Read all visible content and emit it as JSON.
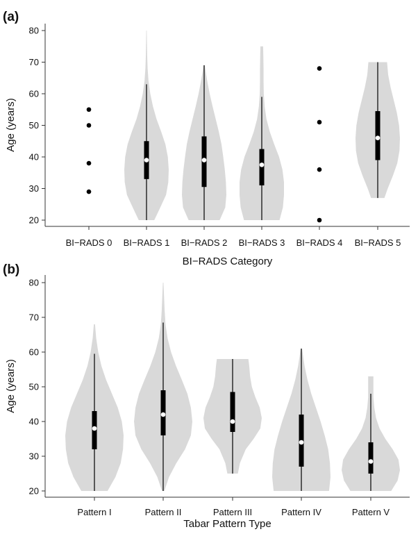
{
  "chart_data": [
    {
      "type": "violin",
      "panel_label": "(a)",
      "xlabel": "BI−RADS Category",
      "ylabel": "Age (years)",
      "ylim": [
        18,
        82
      ],
      "yticks": [
        20,
        30,
        40,
        50,
        60,
        70,
        80
      ],
      "colors": {
        "violin": "#d9d9d9",
        "box": "#000000",
        "median": "#ffffff",
        "point": "#000000"
      },
      "categories": [
        "BI−RADS 0",
        "BI−RADS 1",
        "BI−RADS 2",
        "BI−RADS 3",
        "BI−RADS 4",
        "BI−RADS 5"
      ],
      "groups": [
        {
          "name": "BI−RADS 0",
          "points": [
            29,
            38,
            50,
            55
          ]
        },
        {
          "name": "BI−RADS 1",
          "min": 20,
          "q1": 33,
          "median": 39,
          "q3": 45,
          "whisker_low": 20,
          "whisker_high": 63,
          "max": 80,
          "density": [
            [
              20,
              0.35
            ],
            [
              24,
              0.62
            ],
            [
              28,
              0.88
            ],
            [
              32,
              0.98
            ],
            [
              36,
              1.0
            ],
            [
              40,
              0.96
            ],
            [
              44,
              0.85
            ],
            [
              48,
              0.66
            ],
            [
              52,
              0.45
            ],
            [
              56,
              0.29
            ],
            [
              60,
              0.17
            ],
            [
              64,
              0.09
            ],
            [
              68,
              0.05
            ],
            [
              72,
              0.03
            ],
            [
              76,
              0.02
            ],
            [
              80,
              0.01
            ]
          ]
        },
        {
          "name": "BI−RADS 2",
          "min": 20,
          "q1": 30.5,
          "median": 39,
          "q3": 46.5,
          "whisker_low": 20,
          "whisker_high": 69,
          "max": 69,
          "density": [
            [
              20,
              0.7
            ],
            [
              24,
              0.95
            ],
            [
              28,
              1.0
            ],
            [
              32,
              0.98
            ],
            [
              36,
              0.93
            ],
            [
              40,
              0.86
            ],
            [
              44,
              0.78
            ],
            [
              48,
              0.66
            ],
            [
              52,
              0.52
            ],
            [
              56,
              0.38
            ],
            [
              60,
              0.25
            ],
            [
              64,
              0.14
            ],
            [
              67,
              0.07
            ],
            [
              69,
              0.03
            ]
          ]
        },
        {
          "name": "BI−RADS 3",
          "min": 20,
          "q1": 31,
          "median": 37.5,
          "q3": 42.5,
          "whisker_low": 20,
          "whisker_high": 59,
          "max": 75,
          "density": [
            [
              20,
              0.8
            ],
            [
              24,
              0.95
            ],
            [
              28,
              1.0
            ],
            [
              32,
              1.0
            ],
            [
              36,
              0.93
            ],
            [
              40,
              0.78
            ],
            [
              44,
              0.56
            ],
            [
              48,
              0.36
            ],
            [
              52,
              0.21
            ],
            [
              56,
              0.13
            ],
            [
              60,
              0.09
            ],
            [
              64,
              0.08
            ],
            [
              68,
              0.08
            ],
            [
              72,
              0.07
            ],
            [
              75,
              0.06
            ]
          ]
        },
        {
          "name": "BI−RADS 4",
          "points": [
            20,
            36,
            51,
            68
          ]
        },
        {
          "name": "BI−RADS 5",
          "min": 27,
          "q1": 39,
          "median": 46,
          "q3": 54.5,
          "whisker_low": 27,
          "whisker_high": 70,
          "max": 70,
          "density": [
            [
              27,
              0.3
            ],
            [
              30,
              0.45
            ],
            [
              34,
              0.68
            ],
            [
              38,
              0.88
            ],
            [
              42,
              0.98
            ],
            [
              46,
              1.0
            ],
            [
              50,
              0.96
            ],
            [
              54,
              0.86
            ],
            [
              58,
              0.72
            ],
            [
              62,
              0.58
            ],
            [
              66,
              0.47
            ],
            [
              70,
              0.42
            ]
          ]
        }
      ]
    },
    {
      "type": "violin",
      "panel_label": "(b)",
      "xlabel": "Tabar Pattern Type",
      "ylabel": "Age (years)",
      "ylim": [
        18,
        82
      ],
      "yticks": [
        20,
        30,
        40,
        50,
        60,
        70,
        80
      ],
      "colors": {
        "violin": "#d9d9d9",
        "box": "#000000",
        "median": "#ffffff",
        "point": "#000000"
      },
      "categories": [
        "Pattern I",
        "Pattern II",
        "Pattern III",
        "Pattern IV",
        "Pattern V"
      ],
      "groups": [
        {
          "name": "Pattern I",
          "min": 20,
          "q1": 32,
          "median": 38,
          "q3": 43,
          "whisker_low": 20,
          "whisker_high": 59.5,
          "max": 68,
          "density": [
            [
              20,
              0.45
            ],
            [
              24,
              0.72
            ],
            [
              28,
              0.9
            ],
            [
              32,
              0.98
            ],
            [
              36,
              1.0
            ],
            [
              40,
              0.94
            ],
            [
              44,
              0.8
            ],
            [
              48,
              0.6
            ],
            [
              52,
              0.4
            ],
            [
              56,
              0.24
            ],
            [
              60,
              0.13
            ],
            [
              64,
              0.06
            ],
            [
              68,
              0.02
            ]
          ]
        },
        {
          "name": "Pattern II",
          "min": 20,
          "q1": 36,
          "median": 42,
          "q3": 49,
          "whisker_low": 20,
          "whisker_high": 68.5,
          "max": 80,
          "density": [
            [
              20,
              0.04
            ],
            [
              24,
              0.2
            ],
            [
              28,
              0.45
            ],
            [
              32,
              0.75
            ],
            [
              36,
              0.95
            ],
            [
              40,
              1.0
            ],
            [
              44,
              0.95
            ],
            [
              48,
              0.83
            ],
            [
              52,
              0.64
            ],
            [
              56,
              0.44
            ],
            [
              60,
              0.27
            ],
            [
              64,
              0.15
            ],
            [
              68,
              0.08
            ],
            [
              72,
              0.05
            ],
            [
              76,
              0.03
            ],
            [
              80,
              0.01
            ]
          ]
        },
        {
          "name": "Pattern III",
          "min": 25,
          "q1": 37,
          "median": 40,
          "q3": 48.5,
          "whisker_low": 25,
          "whisker_high": 58,
          "max": 58,
          "density": [
            [
              25,
              0.18
            ],
            [
              28,
              0.25
            ],
            [
              32,
              0.45
            ],
            [
              35,
              0.72
            ],
            [
              38,
              0.95
            ],
            [
              41,
              1.0
            ],
            [
              44,
              0.93
            ],
            [
              47,
              0.78
            ],
            [
              50,
              0.66
            ],
            [
              53,
              0.6
            ],
            [
              56,
              0.57
            ],
            [
              58,
              0.54
            ]
          ]
        },
        {
          "name": "Pattern IV",
          "min": 20,
          "q1": 27,
          "median": 34,
          "q3": 42,
          "whisker_low": 20,
          "whisker_high": 61,
          "max": 61,
          "density": [
            [
              20,
              0.95
            ],
            [
              24,
              1.0
            ],
            [
              28,
              0.98
            ],
            [
              32,
              0.92
            ],
            [
              36,
              0.8
            ],
            [
              40,
              0.66
            ],
            [
              44,
              0.5
            ],
            [
              48,
              0.34
            ],
            [
              52,
              0.21
            ],
            [
              56,
              0.11
            ],
            [
              60,
              0.04
            ],
            [
              61,
              0.02
            ]
          ]
        },
        {
          "name": "Pattern V",
          "min": 20,
          "q1": 25,
          "median": 28.5,
          "q3": 34,
          "whisker_low": 20,
          "whisker_high": 48,
          "max": 53,
          "density": [
            [
              20,
              0.7
            ],
            [
              23,
              0.92
            ],
            [
              26,
              1.0
            ],
            [
              29,
              0.95
            ],
            [
              32,
              0.75
            ],
            [
              35,
              0.5
            ],
            [
              38,
              0.3
            ],
            [
              41,
              0.18
            ],
            [
              44,
              0.12
            ],
            [
              47,
              0.09
            ],
            [
              50,
              0.09
            ],
            [
              53,
              0.09
            ]
          ]
        }
      ]
    }
  ]
}
